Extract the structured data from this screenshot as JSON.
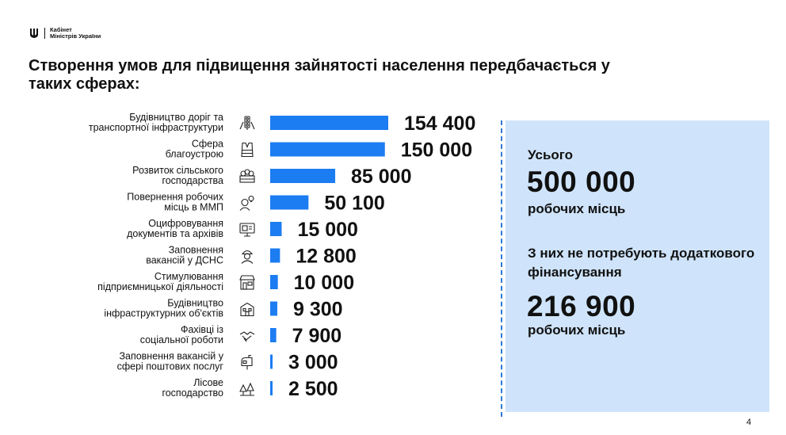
{
  "header": {
    "org_line1": "Кабінет",
    "org_line2": "Міністрів України"
  },
  "title": "Створення умов для підвищення зайнятості населення передбачається у таких сферах:",
  "colors": {
    "bar": "#1c7cf2",
    "panel": "#cfe4fb",
    "dash": "#2f7ad6"
  },
  "chart_data": {
    "type": "bar",
    "orientation": "horizontal",
    "categories": [
      [
        "Будівництво доріг та",
        "транспортної інфраструктури"
      ],
      [
        "Сфера",
        "благоустрою"
      ],
      [
        "Розвиток сільського",
        "господарства"
      ],
      [
        "Повернення робочих",
        "місць в ММП"
      ],
      [
        "Оцифровування",
        "документів та архівів"
      ],
      [
        "Заповнення",
        "вакансій у ДСНС"
      ],
      [
        "Стимулювання",
        "підприємницької діяльності"
      ],
      [
        "Будівництво",
        "інфраструктурних об'єктів"
      ],
      [
        "Фахівці із",
        "соціальної роботи"
      ],
      [
        "Заповнення вакансій у",
        "сфері поштових послуг"
      ],
      [
        "Лісове",
        "господарство"
      ]
    ],
    "values": [
      154400,
      150000,
      85000,
      50100,
      15000,
      12800,
      10000,
      9300,
      7900,
      3000,
      2500
    ],
    "value_labels": [
      "154 400",
      "150 000",
      "85 000",
      "50 100",
      "15 000",
      "12 800",
      "10 000",
      "9 300",
      "7 900",
      "3 000",
      "2 500"
    ],
    "icons": [
      "traffic-light-icon",
      "vest-icon",
      "farm-crate-icon",
      "worker-idea-icon",
      "monitor-archive-icon",
      "firefighter-icon",
      "shop-icon",
      "building-icon",
      "handshake-icon",
      "mailbox-icon",
      "forest-icon"
    ]
  },
  "panel": {
    "total_label": "Усього",
    "total_value": "500 000",
    "total_unit": "робочих місць",
    "sub_label": "З них не потребують додаткового фінансування",
    "sub_value": "216 900",
    "sub_unit": "робочих місць"
  },
  "page_number": "4"
}
